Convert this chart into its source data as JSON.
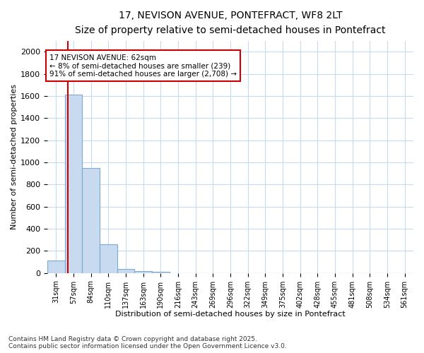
{
  "title_line1": "17, NEVISON AVENUE, PONTEFRACT, WF8 2LT",
  "title_line2": "Size of property relative to semi-detached houses in Pontefract",
  "xlabel": "Distribution of semi-detached houses by size in Pontefract",
  "ylabel": "Number of semi-detached properties",
  "bar_labels": [
    "31sqm",
    "57sqm",
    "84sqm",
    "110sqm",
    "137sqm",
    "163sqm",
    "190sqm",
    "216sqm",
    "243sqm",
    "269sqm",
    "296sqm",
    "322sqm",
    "349sqm",
    "375sqm",
    "402sqm",
    "428sqm",
    "455sqm",
    "481sqm",
    "508sqm",
    "534sqm",
    "561sqm"
  ],
  "bar_values": [
    112,
    1610,
    950,
    260,
    35,
    20,
    10,
    0,
    0,
    0,
    0,
    0,
    0,
    0,
    0,
    0,
    0,
    0,
    0,
    0,
    0
  ],
  "bar_color": "#c8daf0",
  "bar_edge_color": "#7aaad0",
  "annotation_title": "17 NEVISON AVENUE: 62sqm",
  "annotation_line2": "← 8% of semi-detached houses are smaller (239)",
  "annotation_line3": "91% of semi-detached houses are larger (2,708) →",
  "annotation_box_color": "#ffffff",
  "annotation_box_edge": "#cc0000",
  "vline_color": "#cc0000",
  "ylim": [
    0,
    2100
  ],
  "yticks": [
    0,
    200,
    400,
    600,
    800,
    1000,
    1200,
    1400,
    1600,
    1800,
    2000
  ],
  "grid_color": "#c8daf0",
  "background_color": "#ffffff",
  "plot_bg_color": "#ffffff",
  "footer_line1": "Contains HM Land Registry data © Crown copyright and database right 2025.",
  "footer_line2": "Contains public sector information licensed under the Open Government Licence v3.0."
}
